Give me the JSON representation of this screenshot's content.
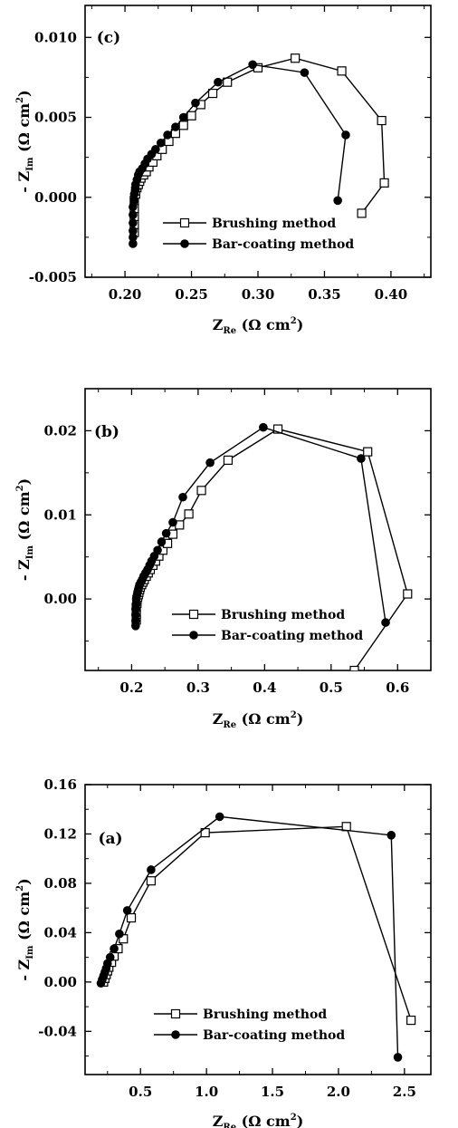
{
  "chart_data": [
    {
      "type": "line",
      "panel_label": "(c)",
      "xlabel_main": "Z",
      "xlabel_sub": "Re",
      "xlabel_unit": "(Ω cm",
      "xlabel_sup": "2",
      "xlabel_close": ")",
      "ylabel_main": "- Z",
      "ylabel_sub": "Im",
      "ylabel_unit": "(Ω cm",
      "ylabel_sup": "2",
      "ylabel_close": ")",
      "xlim": [
        0.17,
        0.43
      ],
      "ylim": [
        -0.005,
        0.012
      ],
      "xticks": [
        0.2,
        0.25,
        0.3,
        0.35,
        0.4
      ],
      "xtick_labels": [
        "0.20",
        "0.25",
        "0.30",
        "0.35",
        "0.40"
      ],
      "yticks": [
        -0.005,
        0.0,
        0.005,
        0.01
      ],
      "ytick_labels": [
        "-0.005",
        "0.000",
        "0.005",
        "0.010"
      ],
      "legend_position": "lower-center",
      "series": [
        {
          "name": "Brushing method",
          "marker": "open-square",
          "x": [
            0.207,
            0.207,
            0.207,
            0.207,
            0.207,
            0.208,
            0.208,
            0.209,
            0.21,
            0.211,
            0.212,
            0.214,
            0.216,
            0.218,
            0.221,
            0.224,
            0.228,
            0.233,
            0.238,
            0.244,
            0.25,
            0.257,
            0.266,
            0.277,
            0.3,
            0.328,
            0.363,
            0.393,
            0.395,
            0.378
          ],
          "y": [
            -0.0022,
            -0.0017,
            -0.0012,
            -0.0007,
            -0.0002,
            0.0002,
            0.0004,
            0.0006,
            0.0008,
            0.001,
            0.0012,
            0.0014,
            0.0016,
            0.0019,
            0.0022,
            0.0026,
            0.003,
            0.0035,
            0.004,
            0.0045,
            0.0051,
            0.0058,
            0.0065,
            0.0072,
            0.0081,
            0.0087,
            0.0079,
            0.0048,
            0.0009,
            -0.001
          ]
        },
        {
          "name": "Bar-coating method",
          "marker": "filled-circle",
          "x": [
            0.206,
            0.206,
            0.206,
            0.206,
            0.206,
            0.206,
            0.207,
            0.207,
            0.208,
            0.208,
            0.209,
            0.21,
            0.211,
            0.213,
            0.215,
            0.217,
            0.22,
            0.223,
            0.227,
            0.232,
            0.238,
            0.244,
            0.253,
            0.27,
            0.296,
            0.335,
            0.366,
            0.36
          ],
          "y": [
            -0.0029,
            -0.0025,
            -0.0021,
            -0.0016,
            -0.0011,
            -0.0006,
            -0.0002,
            0.0002,
            0.0005,
            0.0008,
            0.0011,
            0.0014,
            0.0016,
            0.0018,
            0.0021,
            0.0024,
            0.0027,
            0.003,
            0.0034,
            0.0039,
            0.0044,
            0.005,
            0.0059,
            0.0072,
            0.0083,
            0.0078,
            0.0039,
            -0.0002
          ]
        }
      ]
    },
    {
      "type": "line",
      "panel_label": "(b)",
      "xlabel_main": "Z",
      "xlabel_sub": "Re",
      "xlabel_unit": "(Ω cm",
      "xlabel_sup": "2",
      "xlabel_close": ")",
      "ylabel_main": "- Z",
      "ylabel_sub": "Im",
      "ylabel_unit": "(Ω cm",
      "ylabel_sup": "2",
      "ylabel_close": ")",
      "xlim": [
        0.13,
        0.65
      ],
      "ylim": [
        -0.0085,
        0.025
      ],
      "xticks": [
        0.2,
        0.3,
        0.4,
        0.5,
        0.6
      ],
      "xtick_labels": [
        "0.2",
        "0.3",
        "0.4",
        "0.5",
        "0.6"
      ],
      "yticks": [
        0.0,
        0.01,
        0.02
      ],
      "ytick_labels": [
        "0.00",
        "0.01",
        "0.02"
      ],
      "legend_position": "lower-center",
      "series": [
        {
          "name": "Brushing method",
          "marker": "open-square",
          "x": [
            0.207,
            0.207,
            0.207,
            0.208,
            0.208,
            0.209,
            0.21,
            0.211,
            0.212,
            0.213,
            0.215,
            0.217,
            0.219,
            0.222,
            0.225,
            0.228,
            0.232,
            0.236,
            0.241,
            0.247,
            0.254,
            0.262,
            0.272,
            0.286,
            0.305,
            0.345,
            0.42,
            0.555,
            0.615,
            0.535
          ],
          "y": [
            -0.0025,
            -0.0018,
            -0.001,
            -0.0005,
            -0.0001,
            0.0002,
            0.0005,
            0.0008,
            0.0011,
            0.0014,
            0.0017,
            0.002,
            0.0023,
            0.0027,
            0.0031,
            0.0035,
            0.004,
            0.0045,
            0.0051,
            0.0058,
            0.0066,
            0.0077,
            0.0088,
            0.0101,
            0.0129,
            0.0165,
            0.0202,
            0.0175,
            0.0006,
            -0.0085
          ]
        },
        {
          "name": "Bar-coating method",
          "marker": "filled-circle",
          "x": [
            0.206,
            0.206,
            0.206,
            0.206,
            0.207,
            0.207,
            0.208,
            0.209,
            0.21,
            0.211,
            0.212,
            0.214,
            0.216,
            0.218,
            0.221,
            0.224,
            0.227,
            0.23,
            0.234,
            0.239,
            0.245,
            0.252,
            0.262,
            0.277,
            0.318,
            0.398,
            0.545,
            0.582
          ],
          "y": [
            -0.0032,
            -0.0026,
            -0.0019,
            -0.0012,
            -0.0006,
            0.0,
            0.0004,
            0.0008,
            0.0011,
            0.0014,
            0.0017,
            0.002,
            0.0023,
            0.0027,
            0.0031,
            0.0035,
            0.004,
            0.0045,
            0.0051,
            0.0058,
            0.0068,
            0.0078,
            0.0091,
            0.0121,
            0.0162,
            0.0204,
            0.0167,
            -0.0028
          ]
        }
      ]
    },
    {
      "type": "line",
      "panel_label": "(a)",
      "xlabel_main": "Z",
      "xlabel_sub": "Re",
      "xlabel_unit": "(Ω cm",
      "xlabel_sup": "2",
      "xlabel_close": ")",
      "ylabel_main": "- Z",
      "ylabel_sub": "Im",
      "ylabel_unit": "(Ω cm",
      "ylabel_sup": "2",
      "ylabel_close": ")",
      "xlim": [
        0.08,
        2.7
      ],
      "ylim": [
        -0.075,
        0.16
      ],
      "xticks": [
        0.5,
        1.0,
        1.5,
        2.0,
        2.5
      ],
      "xtick_labels": [
        "0.5",
        "1.0",
        "1.5",
        "2.0",
        "2.5"
      ],
      "yticks": [
        -0.04,
        0.0,
        0.04,
        0.08,
        0.12,
        0.16
      ],
      "ytick_labels": [
        "-0.04",
        "0.00",
        "0.04",
        "0.08",
        "0.12",
        "0.16"
      ],
      "legend_position": "lower-center",
      "series": [
        {
          "name": "Brushing method",
          "marker": "open-square",
          "x": [
            0.22,
            0.23,
            0.24,
            0.25,
            0.26,
            0.28,
            0.3,
            0.33,
            0.37,
            0.43,
            0.58,
            0.99,
            2.06,
            2.55
          ],
          "y": [
            0.0,
            0.003,
            0.006,
            0.009,
            0.012,
            0.016,
            0.021,
            0.027,
            0.035,
            0.052,
            0.082,
            0.121,
            0.126,
            -0.031
          ]
        },
        {
          "name": "Bar-coating method",
          "marker": "filled-circle",
          "x": [
            0.2,
            0.21,
            0.22,
            0.23,
            0.24,
            0.25,
            0.27,
            0.3,
            0.34,
            0.4,
            0.58,
            1.1,
            2.4,
            2.45
          ],
          "y": [
            -0.001,
            0.002,
            0.005,
            0.008,
            0.011,
            0.015,
            0.02,
            0.027,
            0.039,
            0.058,
            0.091,
            0.134,
            0.119,
            -0.061
          ]
        }
      ]
    }
  ]
}
